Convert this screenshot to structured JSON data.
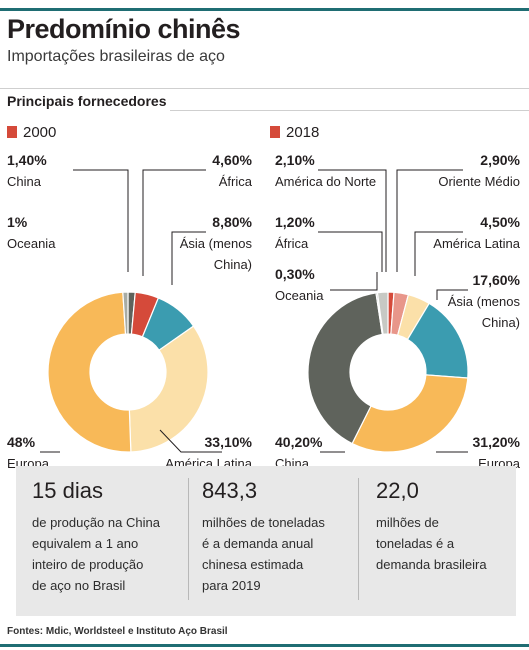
{
  "header": {
    "title": "Predomínio chinês",
    "subtitle": "Importações brasileiras de aço",
    "section": "Principais fornecedores"
  },
  "chart_data": [
    {
      "type": "pie",
      "subtype": "donut",
      "title": "2000",
      "slices": [
        {
          "label": "China",
          "value": 1.4,
          "display": "1,40%",
          "color": "#5f635c"
        },
        {
          "label": "África",
          "value": 4.6,
          "display": "4,60%",
          "color": "#d54a3a"
        },
        {
          "label": "Ásia (menos China)",
          "value": 8.8,
          "display": "8,80%",
          "color": "#3b9cb0"
        },
        {
          "label": "América Latina",
          "value": 33.1,
          "display": "33,10%",
          "color": "#fbe0a9"
        },
        {
          "label": "Europa",
          "value": 48,
          "display": "48%",
          "color": "#f8b958"
        },
        {
          "label": "Oceania",
          "value": 1,
          "display": "1%",
          "color": "#a8aca5"
        }
      ]
    },
    {
      "type": "pie",
      "subtype": "donut",
      "title": "2018",
      "slices": [
        {
          "label": "África",
          "value": 1.2,
          "display": "1,20%",
          "color": "#d54a3a"
        },
        {
          "label": "Oriente Médio",
          "value": 2.9,
          "display": "2,90%",
          "color": "#e8968a"
        },
        {
          "label": "América Latina",
          "value": 4.5,
          "display": "4,50%",
          "color": "#fbe0a9"
        },
        {
          "label": "Ásia (menos China)",
          "value": 17.6,
          "display": "17,60%",
          "color": "#3b9cb0"
        },
        {
          "label": "Europa",
          "value": 31.2,
          "display": "31,20%",
          "color": "#f8b958"
        },
        {
          "label": "China",
          "value": 40.2,
          "display": "40,20%",
          "color": "#5f635c"
        },
        {
          "label": "Oceania",
          "value": 0.3,
          "display": "0,30%",
          "color": "#a8aca5"
        },
        {
          "label": "América do Norte",
          "value": 2.1,
          "display": "2,10%",
          "color": "#c7c9c4"
        }
      ]
    }
  ],
  "labels2000": {
    "china_pct": "1,40%",
    "china": "China",
    "oceania_pct": "1%",
    "oceania": "Oceania",
    "africa_pct": "4,60%",
    "africa": "África",
    "asia_pct": "8,80%",
    "asia_1": "Ásia (menos",
    "asia_2": "China)",
    "europa_pct": "48%",
    "europa": "Europa",
    "amlat_pct": "33,10%",
    "amlat": "América Latina"
  },
  "labels2018": {
    "amnorte_pct": "2,10%",
    "amnorte": "América do Norte",
    "africa_pct": "1,20%",
    "africa": "África",
    "oceania_pct": "0,30%",
    "oceania": "Oceania",
    "oriente_pct": "2,90%",
    "oriente": "Oriente Médio",
    "amlat_pct": "4,50%",
    "amlat": "América Latina",
    "asia_pct": "17,60%",
    "asia_1": "Ásia (menos",
    "asia_2": "China)",
    "china_pct": "40,20%",
    "china": "China",
    "europa_pct": "31,20%",
    "europa": "Europa"
  },
  "stats": [
    {
      "big": "15 dias",
      "lines": [
        "de produção na China",
        "equivalem a 1 ano",
        "inteiro de produção",
        "de aço no Brasil"
      ]
    },
    {
      "big": "843,3",
      "lines": [
        "milhões de toneladas",
        "é a demanda anual",
        "chinesa estimada",
        "para 2019"
      ]
    },
    {
      "big": "22,0",
      "lines": [
        "milhões de",
        "toneladas é a",
        "demanda brasileira"
      ]
    }
  ],
  "source": "Fontes: Mdic, Worldsteel e Instituto Aço Brasil",
  "colors": {
    "accent_bar": "#1f6d73",
    "legend_swatch": "#d54a3a",
    "stat_box": "#e8e8e8"
  }
}
